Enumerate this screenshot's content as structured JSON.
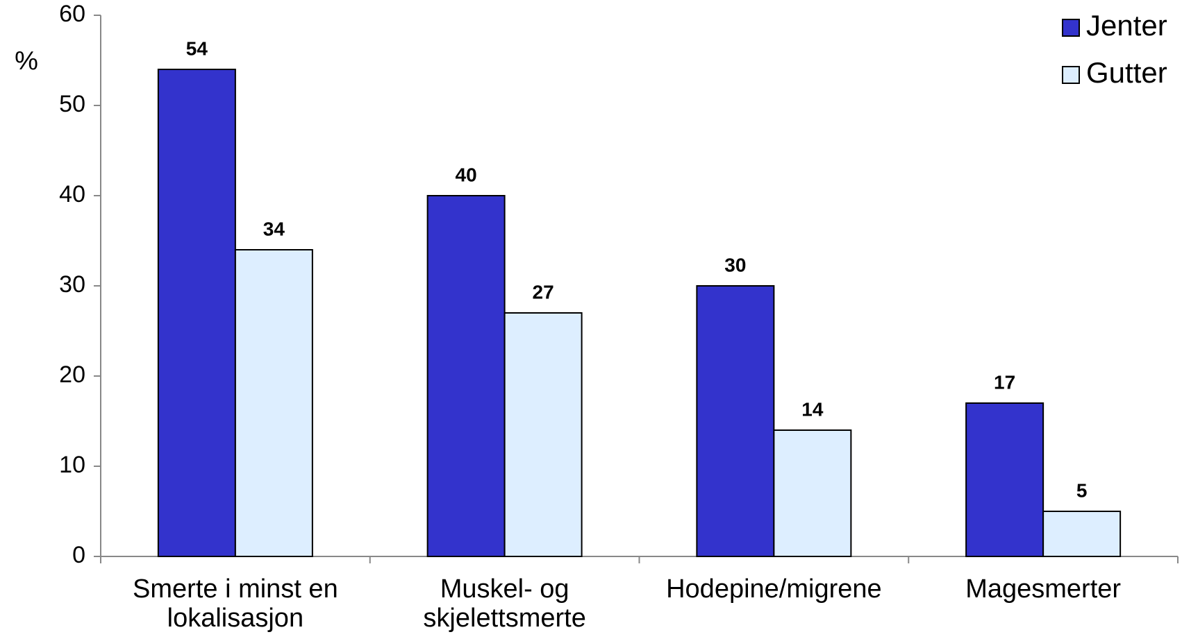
{
  "chart_data": {
    "type": "bar",
    "y_label": "%",
    "categories": [
      "Smerte i minst en lokalisasjon",
      "Muskel- og skjelettsmerte",
      "Hodepine/migrene",
      "Magesmerter"
    ],
    "series": [
      {
        "name": "Jenter",
        "color": "#3333cc",
        "values": [
          54,
          40,
          30,
          17
        ]
      },
      {
        "name": "Gutter",
        "color": "#ddeeff",
        "values": [
          34,
          27,
          14,
          5
        ]
      }
    ],
    "ylim": [
      0,
      60
    ],
    "yticks": [
      0,
      10,
      20,
      30,
      40,
      50,
      60
    ],
    "legend": "top-right"
  }
}
